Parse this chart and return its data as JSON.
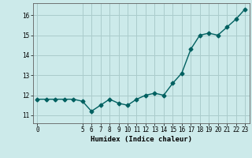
{
  "title": "",
  "xlabel": "Humidex (Indice chaleur)",
  "ylabel": "",
  "x": [
    0,
    1,
    2,
    3,
    4,
    5,
    6,
    7,
    8,
    9,
    10,
    11,
    12,
    13,
    14,
    15,
    16,
    17,
    18,
    19,
    20,
    21,
    22,
    23
  ],
  "y": [
    11.8,
    11.8,
    11.8,
    11.8,
    11.8,
    11.7,
    11.2,
    11.5,
    11.8,
    11.6,
    11.5,
    11.8,
    12.0,
    12.1,
    12.0,
    12.6,
    13.1,
    14.3,
    15.0,
    15.1,
    15.0,
    15.4,
    15.8,
    16.3
  ],
  "line_color": "#006060",
  "bg_color": "#cceaea",
  "grid_color": "#aacccc",
  "yticks": [
    11,
    12,
    13,
    14,
    15,
    16
  ],
  "xticks": [
    0,
    5,
    6,
    7,
    8,
    9,
    10,
    11,
    12,
    13,
    14,
    15,
    16,
    17,
    18,
    19,
    20,
    21,
    22,
    23
  ],
  "ylim": [
    10.6,
    16.6
  ],
  "xlim": [
    -0.5,
    23.5
  ],
  "marker": "D",
  "marker_size": 2.5,
  "line_width": 1.0,
  "tick_fontsize": 5.5,
  "xlabel_fontsize": 6.5
}
